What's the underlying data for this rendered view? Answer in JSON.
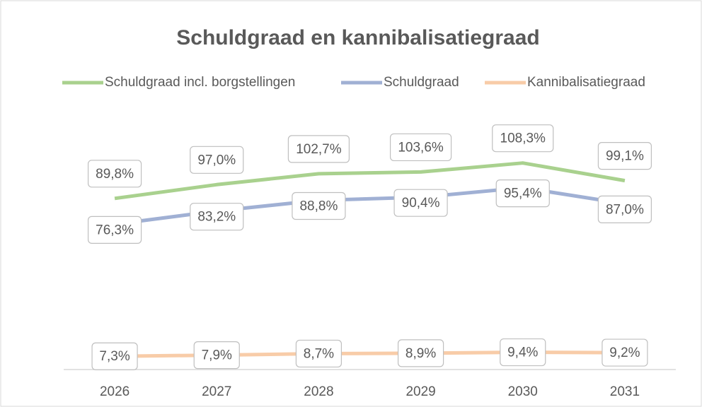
{
  "chart_data": {
    "type": "line",
    "title": "Schuldgraad en kannibalisatiegraad",
    "categories": [
      "2026",
      "2027",
      "2028",
      "2029",
      "2030",
      "2031"
    ],
    "series": [
      {
        "name": "Schuldgraad incl. borgstellingen",
        "color": "#a9d18e",
        "values": [
          89.8,
          97.0,
          102.7,
          103.6,
          108.3,
          99.1
        ],
        "value_labels": [
          "89,8%",
          "97,0%",
          "102,7%",
          "103,6%",
          "108,3%",
          "99,1%"
        ]
      },
      {
        "name": "Schuldgraad",
        "color": "#a0b0d4",
        "values": [
          76.3,
          83.2,
          88.8,
          90.4,
          95.4,
          87.0
        ],
        "value_labels": [
          "76,3%",
          "83,2%",
          "88,8%",
          "90,4%",
          "95,4%",
          "87,0%"
        ]
      },
      {
        "name": "Kannibalisatiegraad",
        "color": "#f8cca8",
        "values": [
          7.3,
          7.9,
          8.7,
          8.9,
          9.4,
          9.2
        ],
        "value_labels": [
          "7,3%",
          "7,9%",
          "8,7%",
          "8,9%",
          "9,4%",
          "9,2%"
        ]
      }
    ],
    "ylim": [
      0,
      120
    ],
    "legend": "top"
  }
}
